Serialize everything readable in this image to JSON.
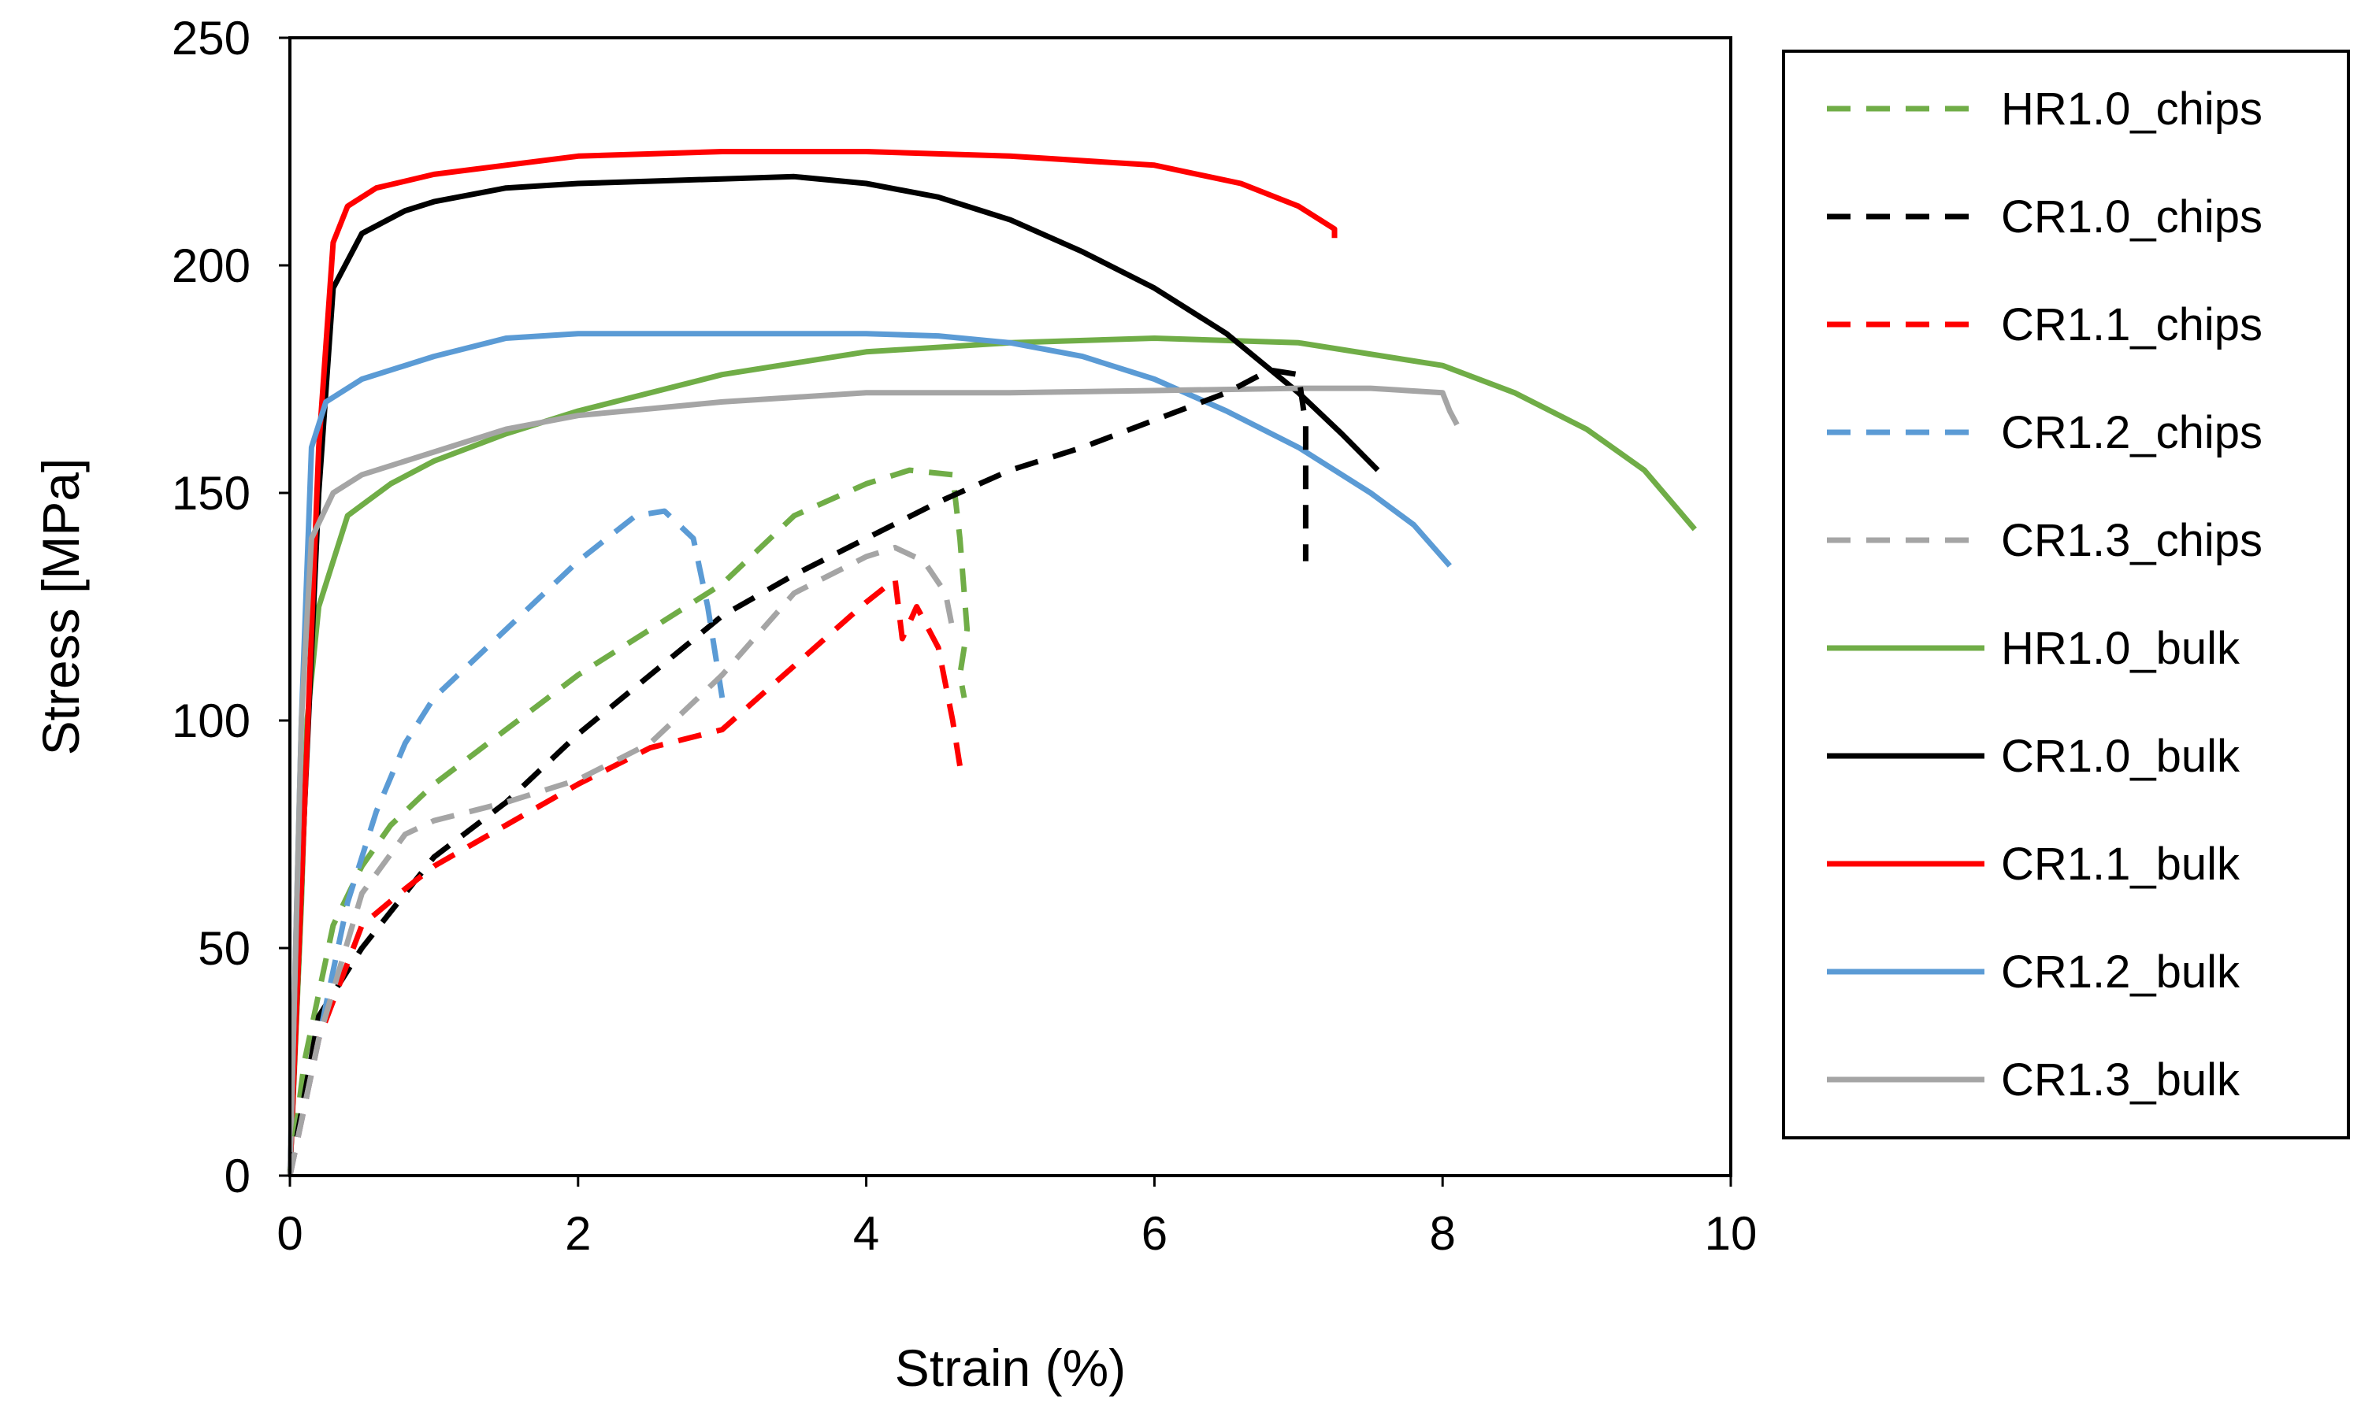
{
  "chart_data": {
    "type": "line",
    "title": "",
    "xlabel": "Strain (%)",
    "ylabel": "Stress [MPa]",
    "xlim": [
      0,
      10
    ],
    "ylim": [
      0,
      250
    ],
    "xticks": [
      0,
      2,
      4,
      6,
      8,
      10
    ],
    "yticks": [
      0,
      50,
      100,
      150,
      200,
      250
    ],
    "grid": false,
    "legend_position": "right",
    "series": [
      {
        "name": "HR1.0_chips",
        "color": "#70AD47",
        "dash": "dashed",
        "x": [
          0,
          0.1,
          0.3,
          0.5,
          0.7,
          1.0,
          1.5,
          2.0,
          2.5,
          3.0,
          3.5,
          4.0,
          4.3,
          4.6,
          4.65,
          4.7,
          4.65,
          4.68
        ],
        "y": [
          0,
          25,
          55,
          68,
          77,
          86,
          98,
          110,
          120,
          130,
          145,
          152,
          155,
          154,
          140,
          120,
          110,
          105
        ]
      },
      {
        "name": "CR1.0_chips",
        "color": "#000000",
        "dash": "dashed",
        "x": [
          0,
          0.2,
          0.5,
          0.8,
          1.0,
          1.5,
          2.0,
          2.5,
          3.0,
          3.5,
          4.0,
          4.5,
          5.0,
          5.5,
          6.0,
          6.5,
          6.8,
          7.0,
          7.05,
          7.05
        ],
        "y": [
          0,
          35,
          50,
          62,
          70,
          82,
          97,
          110,
          123,
          132,
          140,
          148,
          155,
          160,
          166,
          172,
          177,
          176,
          165,
          135
        ]
      },
      {
        "name": "CR1.1_chips",
        "color": "#FF0000",
        "dash": "dashed",
        "x": [
          0,
          0.2,
          0.5,
          0.8,
          1.0,
          1.5,
          2.0,
          2.5,
          3.0,
          3.5,
          4.0,
          4.2,
          4.25,
          4.35,
          4.5,
          4.6,
          4.65
        ],
        "y": [
          0,
          30,
          55,
          63,
          68,
          77,
          86,
          94,
          98,
          112,
          126,
          131,
          118,
          125,
          116,
          100,
          90
        ]
      },
      {
        "name": "CR1.2_chips",
        "color": "#5B9BD5",
        "dash": "dashed",
        "x": [
          0,
          0.2,
          0.4,
          0.6,
          0.8,
          1.0,
          1.5,
          2.0,
          2.4,
          2.6,
          2.8,
          2.9,
          2.95,
          3.0
        ],
        "y": [
          0,
          30,
          60,
          80,
          95,
          105,
          120,
          135,
          145,
          146,
          140,
          125,
          115,
          105
        ]
      },
      {
        "name": "CR1.3_chips",
        "color": "#A5A5A5",
        "dash": "dashed",
        "x": [
          0,
          0.2,
          0.5,
          0.8,
          1.0,
          1.5,
          2.0,
          2.5,
          3.0,
          3.5,
          4.0,
          4.2,
          4.4,
          4.55,
          4.6
        ],
        "y": [
          0,
          30,
          62,
          75,
          78,
          82,
          87,
          95,
          110,
          128,
          136,
          138,
          135,
          128,
          120
        ]
      },
      {
        "name": "HR1.0_bulk",
        "color": "#70AD47",
        "dash": "solid",
        "x": [
          0,
          0.08,
          0.12,
          0.2,
          0.4,
          0.7,
          1.0,
          1.5,
          2.0,
          3.0,
          4.0,
          5.0,
          6.0,
          7.0,
          8.0,
          8.5,
          9.0,
          9.4,
          9.75
        ],
        "y": [
          0,
          60,
          100,
          125,
          145,
          152,
          157,
          163,
          168,
          176,
          181,
          183,
          184,
          183,
          178,
          172,
          164,
          155,
          142
        ]
      },
      {
        "name": "CR1.0_bulk",
        "color": "#000000",
        "dash": "solid",
        "x": [
          0,
          0.1,
          0.2,
          0.3,
          0.5,
          0.8,
          1.0,
          1.5,
          2.0,
          2.5,
          3.0,
          3.5,
          4.0,
          4.5,
          5.0,
          5.5,
          6.0,
          6.5,
          7.0,
          7.3,
          7.55
        ],
        "y": [
          0,
          80,
          150,
          195,
          207,
          212,
          214,
          217,
          218,
          218.5,
          219,
          219.5,
          218,
          215,
          210,
          203,
          195,
          185,
          172,
          163,
          155
        ]
      },
      {
        "name": "CR1.1_bulk",
        "color": "#FF0000",
        "dash": "solid",
        "x": [
          0,
          0.1,
          0.2,
          0.3,
          0.4,
          0.6,
          1.0,
          1.5,
          2.0,
          3.0,
          4.0,
          5.0,
          6.0,
          6.6,
          7.0,
          7.25,
          7.25
        ],
        "y": [
          0,
          80,
          160,
          205,
          213,
          217,
          220,
          222,
          224,
          225,
          225,
          224,
          222,
          218,
          213,
          208,
          206
        ]
      },
      {
        "name": "CR1.2_bulk",
        "color": "#5B9BD5",
        "dash": "solid",
        "x": [
          0,
          0.08,
          0.15,
          0.25,
          0.5,
          1.0,
          1.5,
          2.0,
          3.0,
          4.0,
          4.5,
          5.0,
          5.5,
          6.0,
          6.5,
          7.0,
          7.5,
          7.8,
          8.05
        ],
        "y": [
          0,
          100,
          160,
          170,
          175,
          180,
          184,
          185,
          185,
          185,
          184.5,
          183,
          180,
          175,
          168,
          160,
          150,
          143,
          134
        ]
      },
      {
        "name": "CR1.3_bulk",
        "color": "#A5A5A5",
        "dash": "solid",
        "x": [
          0,
          0.08,
          0.15,
          0.3,
          0.5,
          1.0,
          1.5,
          2.0,
          3.0,
          4.0,
          5.0,
          6.0,
          7.0,
          7.5,
          8.0,
          8.05,
          8.1
        ],
        "y": [
          0,
          100,
          140,
          150,
          154,
          159,
          164,
          167,
          170,
          172,
          172,
          172.5,
          173,
          173,
          172,
          168,
          165
        ]
      }
    ]
  }
}
